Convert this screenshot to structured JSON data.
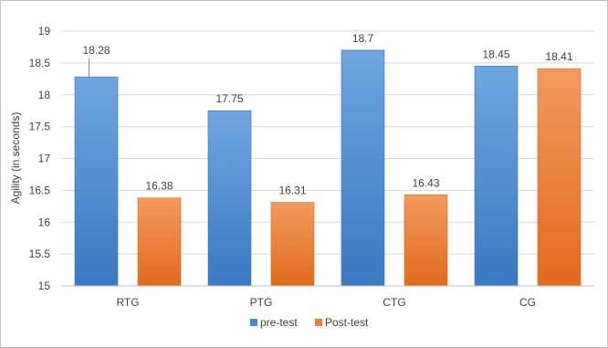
{
  "chart_data": {
    "type": "bar",
    "title": "",
    "xlabel": "",
    "ylabel": "Agility (in seconds)",
    "ylim": [
      15,
      19
    ],
    "yticks": [
      "15",
      "15.5",
      "16",
      "16.5",
      "17",
      "17.5",
      "18",
      "18.5",
      "19"
    ],
    "grid": true,
    "legend": "bottom-center",
    "categories": [
      "RTG",
      "PTG",
      "CTG",
      "CG"
    ],
    "series": [
      {
        "name": "pre-test",
        "color": "#4a89d0",
        "values": [
          18.28,
          17.75,
          18.7,
          18.45
        ],
        "labels": [
          "18.28",
          "17.75",
          "18.7",
          "18.45"
        ]
      },
      {
        "name": "Post-test",
        "color": "#ed7d31",
        "values": [
          16.38,
          16.31,
          16.43,
          18.41
        ],
        "labels": [
          "16.38",
          "16.31",
          "16.43",
          "18.41"
        ]
      }
    ]
  }
}
